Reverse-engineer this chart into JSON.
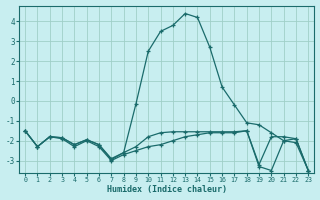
{
  "xlabel": "Humidex (Indice chaleur)",
  "xlim": [
    -0.5,
    23.5
  ],
  "ylim": [
    -3.6,
    4.8
  ],
  "yticks": [
    -3,
    -2,
    -1,
    0,
    1,
    2,
    3,
    4
  ],
  "xticks": [
    0,
    1,
    2,
    3,
    4,
    5,
    6,
    7,
    8,
    9,
    10,
    11,
    12,
    13,
    14,
    15,
    16,
    17,
    18,
    19,
    20,
    21,
    22,
    23
  ],
  "bg_color": "#c8eef0",
  "grid_color": "#a0cfc8",
  "line_color": "#1a6b6b",
  "line1_x": [
    0,
    1,
    2,
    3,
    4,
    5,
    6,
    7,
    8,
    9,
    10,
    11,
    12,
    13,
    14,
    15,
    16,
    17,
    18,
    19,
    20,
    21,
    22,
    23
  ],
  "line1_y": [
    -1.5,
    -2.3,
    -1.8,
    -1.9,
    -2.3,
    -2.0,
    -2.3,
    -3.0,
    -2.7,
    -2.5,
    -2.3,
    -2.2,
    -2.0,
    -1.8,
    -1.7,
    -1.6,
    -1.6,
    -1.6,
    -1.5,
    -3.3,
    -3.5,
    -2.0,
    -1.9,
    -3.5
  ],
  "line2_x": [
    0,
    1,
    2,
    3,
    4,
    5,
    6,
    7,
    8,
    9,
    10,
    11,
    12,
    13,
    14,
    15,
    16,
    17,
    18,
    19,
    20,
    21,
    22,
    23
  ],
  "line2_y": [
    -1.5,
    -2.3,
    -1.8,
    -1.85,
    -2.2,
    -1.95,
    -2.2,
    -2.95,
    -2.6,
    -2.3,
    -1.8,
    -1.6,
    -1.55,
    -1.55,
    -1.55,
    -1.55,
    -1.55,
    -1.55,
    -1.5,
    -3.2,
    -1.8,
    -1.8,
    -1.9,
    -3.5
  ],
  "line3_x": [
    0,
    1,
    2,
    3,
    4,
    5,
    6,
    7,
    8,
    9,
    10,
    11,
    12,
    13,
    14,
    15,
    16,
    17,
    18,
    19,
    20,
    21,
    22,
    23
  ],
  "line3_y": [
    -1.5,
    -2.3,
    -1.8,
    -1.85,
    -2.2,
    -1.95,
    -2.2,
    -2.9,
    -2.6,
    -0.15,
    2.5,
    3.5,
    3.8,
    4.4,
    4.2,
    2.7,
    0.7,
    -0.2,
    -1.1,
    -1.2,
    -1.6,
    -2.0,
    -2.1,
    -3.5
  ]
}
